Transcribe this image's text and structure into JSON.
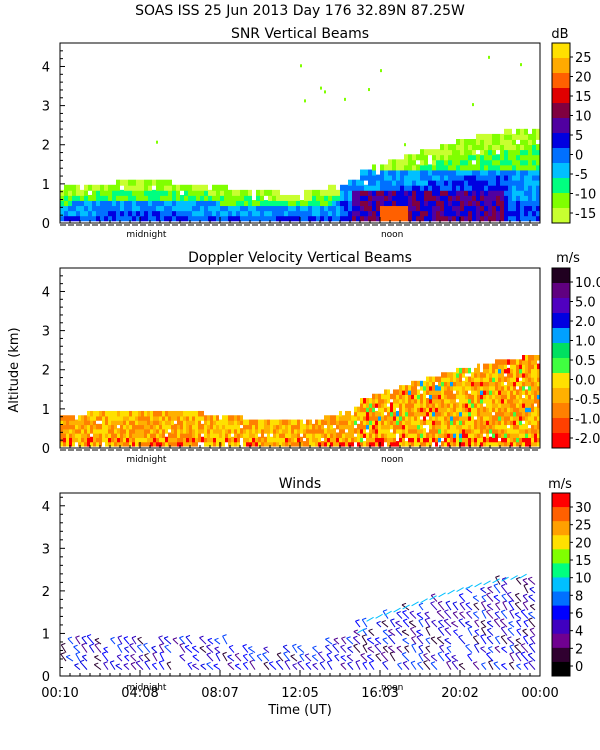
{
  "page": {
    "title": "SOAS ISS  25 Jun 2013 Day 176 32.89N  87.25W",
    "ylabel": "Altitude (km)",
    "xlabel": "Time (UT)",
    "x_ticks": [
      "00:10",
      "04:08",
      "08:07",
      "12:05",
      "16:03",
      "20:02",
      "00:00"
    ],
    "markers": [
      "midnight",
      "noon"
    ]
  },
  "chart_data": [
    {
      "type": "heatmap",
      "title": "SNR Vertical Beams",
      "ylabel": "Altitude (km)",
      "ylim": [
        0,
        4.6
      ],
      "y_ticks": [
        "0",
        "1",
        "2",
        "3",
        "4"
      ],
      "colorbar": {
        "unit": "dB",
        "labels": [
          "25",
          "20",
          "15",
          "10",
          "5",
          "0",
          "-5",
          "-10",
          "-15"
        ],
        "colors": [
          "#ffe000",
          "#ffaa00",
          "#ff6000",
          "#e00000",
          "#800040",
          "#5000a0",
          "#0000e0",
          "#0070ff",
          "#00c0ff",
          "#00ff80",
          "#80ff00",
          "#c8ff30"
        ]
      }
    },
    {
      "type": "heatmap",
      "title": "Doppler Velocity Vertical Beams",
      "unit": "m/s",
      "ylim": [
        0,
        4.6
      ],
      "y_ticks": [
        "0",
        "1",
        "2",
        "3",
        "4"
      ],
      "colorbar": {
        "unit": "m/s",
        "labels": [
          "10.0",
          "5.0",
          "2.0",
          "1.0",
          "0.5",
          "0.0",
          "-0.5",
          "-1.0",
          "-2.0"
        ],
        "colors": [
          "#200020",
          "#600080",
          "#5000c0",
          "#0000e0",
          "#00a0ff",
          "#00e060",
          "#40ff40",
          "#ffe000",
          "#ffb000",
          "#ff8000",
          "#ff4000",
          "#ff0000"
        ]
      }
    },
    {
      "type": "scatter",
      "title": "Winds",
      "unit": "m/s",
      "ylim": [
        0,
        4.3
      ],
      "y_ticks": [
        "0",
        "1",
        "2",
        "3",
        "4"
      ],
      "colorbar": {
        "unit": "m/s",
        "labels": [
          "30",
          "25",
          "20",
          "15",
          "10",
          "8",
          "6",
          "4",
          "2",
          "0"
        ],
        "colors": [
          "#ff0000",
          "#ff6000",
          "#ffa000",
          "#ffe000",
          "#80ff00",
          "#00ff80",
          "#00c0ff",
          "#0070ff",
          "#0000ff",
          "#4000c0",
          "#700090",
          "#300030",
          "#000000"
        ]
      }
    }
  ]
}
